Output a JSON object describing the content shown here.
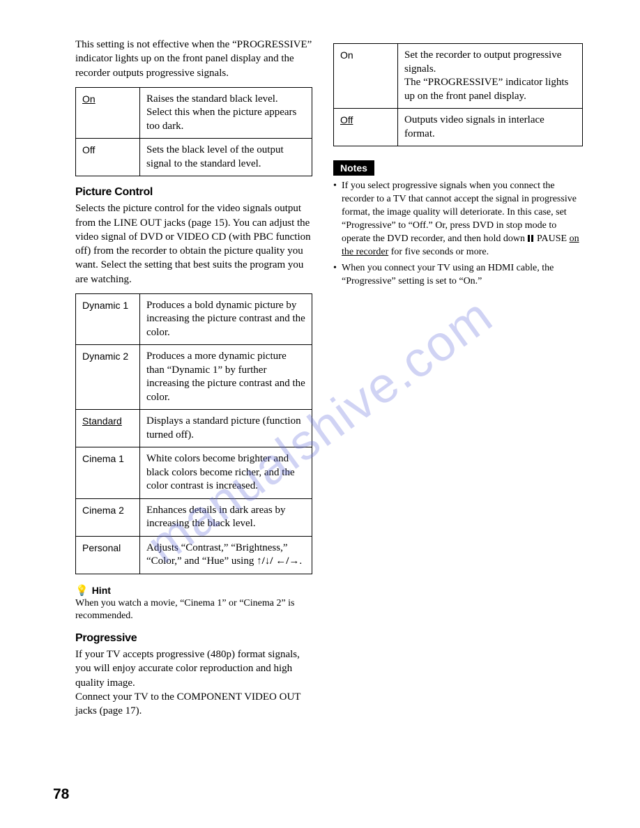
{
  "page_number": "78",
  "watermark": "manualshive.com",
  "left": {
    "intro": "This setting is not effective when the “PROGRESSIVE” indicator lights up on the front panel display and the recorder outputs progressive signals.",
    "table1": {
      "rows": [
        {
          "label": "On",
          "underline": true,
          "desc": "Raises the standard black level. Select this when the picture appears too dark."
        },
        {
          "label": "Off",
          "underline": false,
          "desc": "Sets the black level of the output signal to the standard level."
        }
      ]
    },
    "picture_control": {
      "heading": "Picture Control",
      "body": "Selects the picture control for the video signals output from the LINE OUT jacks (page 15). You can adjust the video signal of DVD or VIDEO CD (with PBC function off) from the recorder to obtain the picture quality you want. Select the setting that best suits the program you are watching.",
      "rows": [
        {
          "label": "Dynamic 1",
          "underline": false,
          "desc": "Produces a bold dynamic picture by increasing the picture contrast and the color."
        },
        {
          "label": "Dynamic 2",
          "underline": false,
          "desc": "Produces a more dynamic picture than “Dynamic 1” by further increasing the picture contrast and the color."
        },
        {
          "label": "Standard",
          "underline": true,
          "desc": "Displays a standard picture (function turned off)."
        },
        {
          "label": "Cinema 1",
          "underline": false,
          "desc": "White colors become brighter and black colors become richer, and the color contrast is increased."
        },
        {
          "label": "Cinema 2",
          "underline": false,
          "desc": "Enhances details in dark areas by increasing the black level."
        },
        {
          "label": "Personal",
          "underline": false,
          "desc_pre": "Adjusts “Contrast,” “Brightness,” “Color,” and “Hue” using ",
          "desc_post": "."
        }
      ]
    },
    "hint": {
      "label": "Hint",
      "text": "When you watch a movie, “Cinema 1” or “Cinema 2” is recommended."
    },
    "progressive": {
      "heading": "Progressive",
      "body": "If your TV accepts progressive (480p) format signals, you will enjoy accurate color reproduction and high quality image.\nConnect your TV to the COMPONENT VIDEO OUT jacks (page 17)."
    }
  },
  "right": {
    "table": {
      "rows": [
        {
          "label": "On",
          "underline": false,
          "desc": "Set the recorder to output progressive signals.\nThe “PROGRESSIVE” indicator lights up on the front panel display."
        },
        {
          "label": "Off",
          "underline": true,
          "desc": "Outputs video signals in interlace format."
        }
      ]
    },
    "notes_label": "Notes",
    "notes": [
      {
        "pre": "If you select progressive signals when you connect the recorder to a TV that cannot accept the signal in progressive format, the image quality will deteriorate. In this case, set “Progressive” to “Off.” Or, press DVD in stop mode to operate the DVD recorder, and then hold down ",
        "mid": " PAUSE ",
        "u": "on the recorder",
        "post": " for five seconds or more."
      },
      {
        "text": "When you connect your TV using an HDMI cable, the “Progressive” setting is set to “On.”"
      }
    ]
  }
}
